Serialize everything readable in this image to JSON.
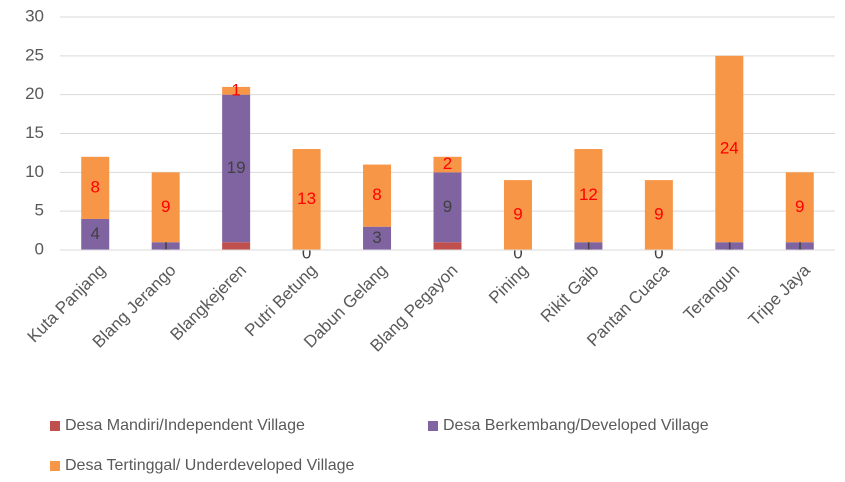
{
  "chart_data": {
    "type": "stacked_bar",
    "categories": [
      "Kuta Panjang",
      "Blang Jerango",
      "Blangkejeren",
      "Putri Betung",
      "Dabun Gelang",
      "Blang Pegayon",
      "Pining",
      "Rikit Gaib",
      "Pantan Cuaca",
      "Terangun",
      "Tripe Jaya"
    ],
    "series": [
      {
        "name": "Desa Mandiri/Independent Village",
        "color": "#c0504d",
        "values": [
          0,
          0,
          1,
          0,
          0,
          1,
          0,
          0,
          0,
          0,
          0
        ],
        "labels": false
      },
      {
        "name": "Desa Berkembang/Developed Village",
        "color": "#8064a2",
        "values": [
          4,
          1,
          19,
          0,
          3,
          9,
          0,
          1,
          0,
          1,
          1
        ],
        "labels": true,
        "label_color": "#404040"
      },
      {
        "name": "Desa Tertinggal/ Underdeveloped Village",
        "color": "#f79646",
        "values": [
          8,
          9,
          1,
          13,
          8,
          2,
          9,
          12,
          9,
          24,
          9
        ],
        "labels": true,
        "label_color": "#ff0000"
      }
    ],
    "ylim": [
      0,
      30
    ],
    "yticks": [
      0,
      5,
      10,
      15,
      20,
      25,
      30
    ],
    "grid": true,
    "legend": "bottom"
  }
}
